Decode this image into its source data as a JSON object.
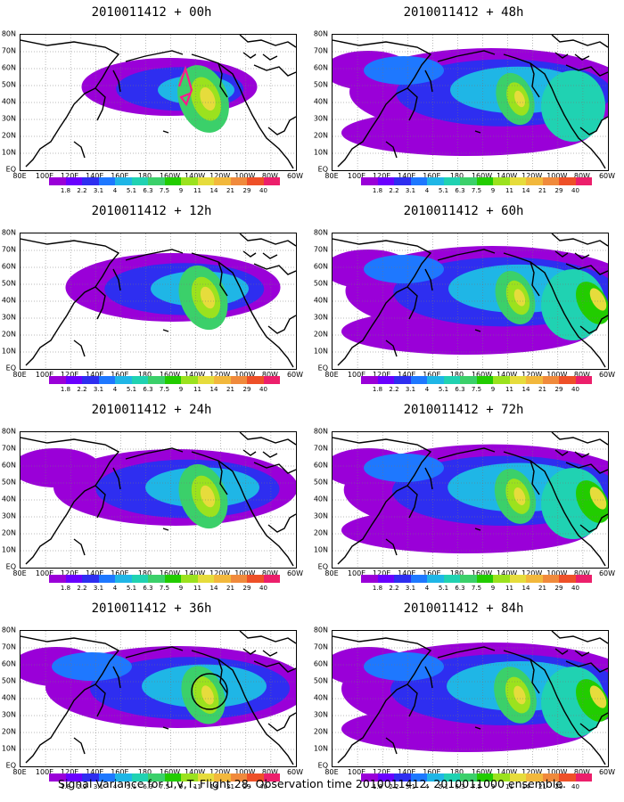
{
  "caption": "Signal Variance for u,v,T. Flight 28. Observation time 2010011412. 2010011000 ensemble.",
  "panels": [
    {
      "title": "2010011412 + 00h",
      "spread": 0.35,
      "coast_peak": 0.95,
      "start_marker": true
    },
    {
      "title": "2010011412 + 48h",
      "spread": 0.9,
      "coast_peak": 0.45
    },
    {
      "title": "2010011412 + 12h",
      "spread": 0.55,
      "coast_peak": 0.85
    },
    {
      "title": "2010011412 + 60h",
      "spread": 0.95,
      "coast_peak": 0.5
    },
    {
      "title": "2010011412 + 24h",
      "spread": 0.7,
      "coast_peak": 0.85
    },
    {
      "title": "2010011412 + 72h",
      "spread": 0.97,
      "coast_peak": 0.55
    },
    {
      "title": "2010011412 + 36h",
      "spread": 0.8,
      "coast_peak": 0.65,
      "circle_marker": true
    },
    {
      "title": "2010011412 + 84h",
      "spread": 1.0,
      "coast_peak": 0.6
    }
  ],
  "y_axis_labels": [
    "80N",
    "70N",
    "60N",
    "50N",
    "40N",
    "30N",
    "20N",
    "10N",
    "EQ"
  ],
  "x_axis_labels": [
    "80E",
    "100E",
    "120E",
    "140E",
    "160E",
    "180",
    "160W",
    "140W",
    "120W",
    "100W",
    "80W",
    "60W"
  ],
  "colorbar": {
    "labels": [
      "1.8",
      "2.2",
      "3.1",
      "4",
      "5.1",
      "6.3",
      "7.5",
      "9",
      "11",
      "14",
      "21",
      "29",
      "40"
    ],
    "colors": [
      "#9a00d8",
      "#6a00ff",
      "#2e2ef0",
      "#1e78ff",
      "#1fb6e6",
      "#20d2b2",
      "#3bd06a",
      "#22cc00",
      "#9be21e",
      "#e6dc3c",
      "#f2b83c",
      "#f08a3c",
      "#ee5028",
      "#ec1f6b"
    ]
  }
}
